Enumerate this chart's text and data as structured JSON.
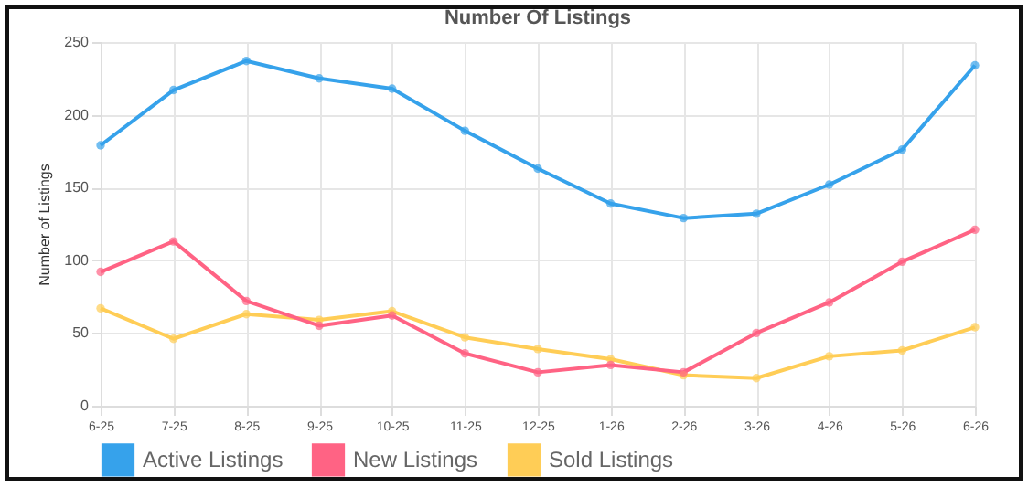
{
  "chart_data": {
    "type": "line",
    "title": "Number Of Listings",
    "ylabel": "Number of Listings",
    "categories": [
      "6-25",
      "7-25",
      "8-25",
      "9-25",
      "10-25",
      "11-25",
      "12-25",
      "1-26",
      "2-26",
      "3-26",
      "4-26",
      "5-26",
      "6-26"
    ],
    "series": [
      {
        "name": "Active Listings",
        "color": "#36a2eb",
        "values": [
          179,
          217,
          237,
          225,
          218,
          189,
          163,
          139,
          129,
          132,
          152,
          176,
          234
        ]
      },
      {
        "name": "New Listings",
        "color": "#ff6384",
        "values": [
          92,
          113,
          72,
          55,
          62,
          36,
          23,
          28,
          23,
          50,
          71,
          99,
          121
        ]
      },
      {
        "name": "Sold Listings",
        "color": "#ffcd56",
        "values": [
          67,
          46,
          63,
          59,
          65,
          47,
          39,
          32,
          21,
          19,
          34,
          38,
          54
        ]
      }
    ],
    "ylim": [
      0,
      250
    ],
    "yticks": [
      0,
      50,
      100,
      150,
      200,
      250
    ],
    "grid": true,
    "legend": "bottom",
    "marker": "circle"
  }
}
